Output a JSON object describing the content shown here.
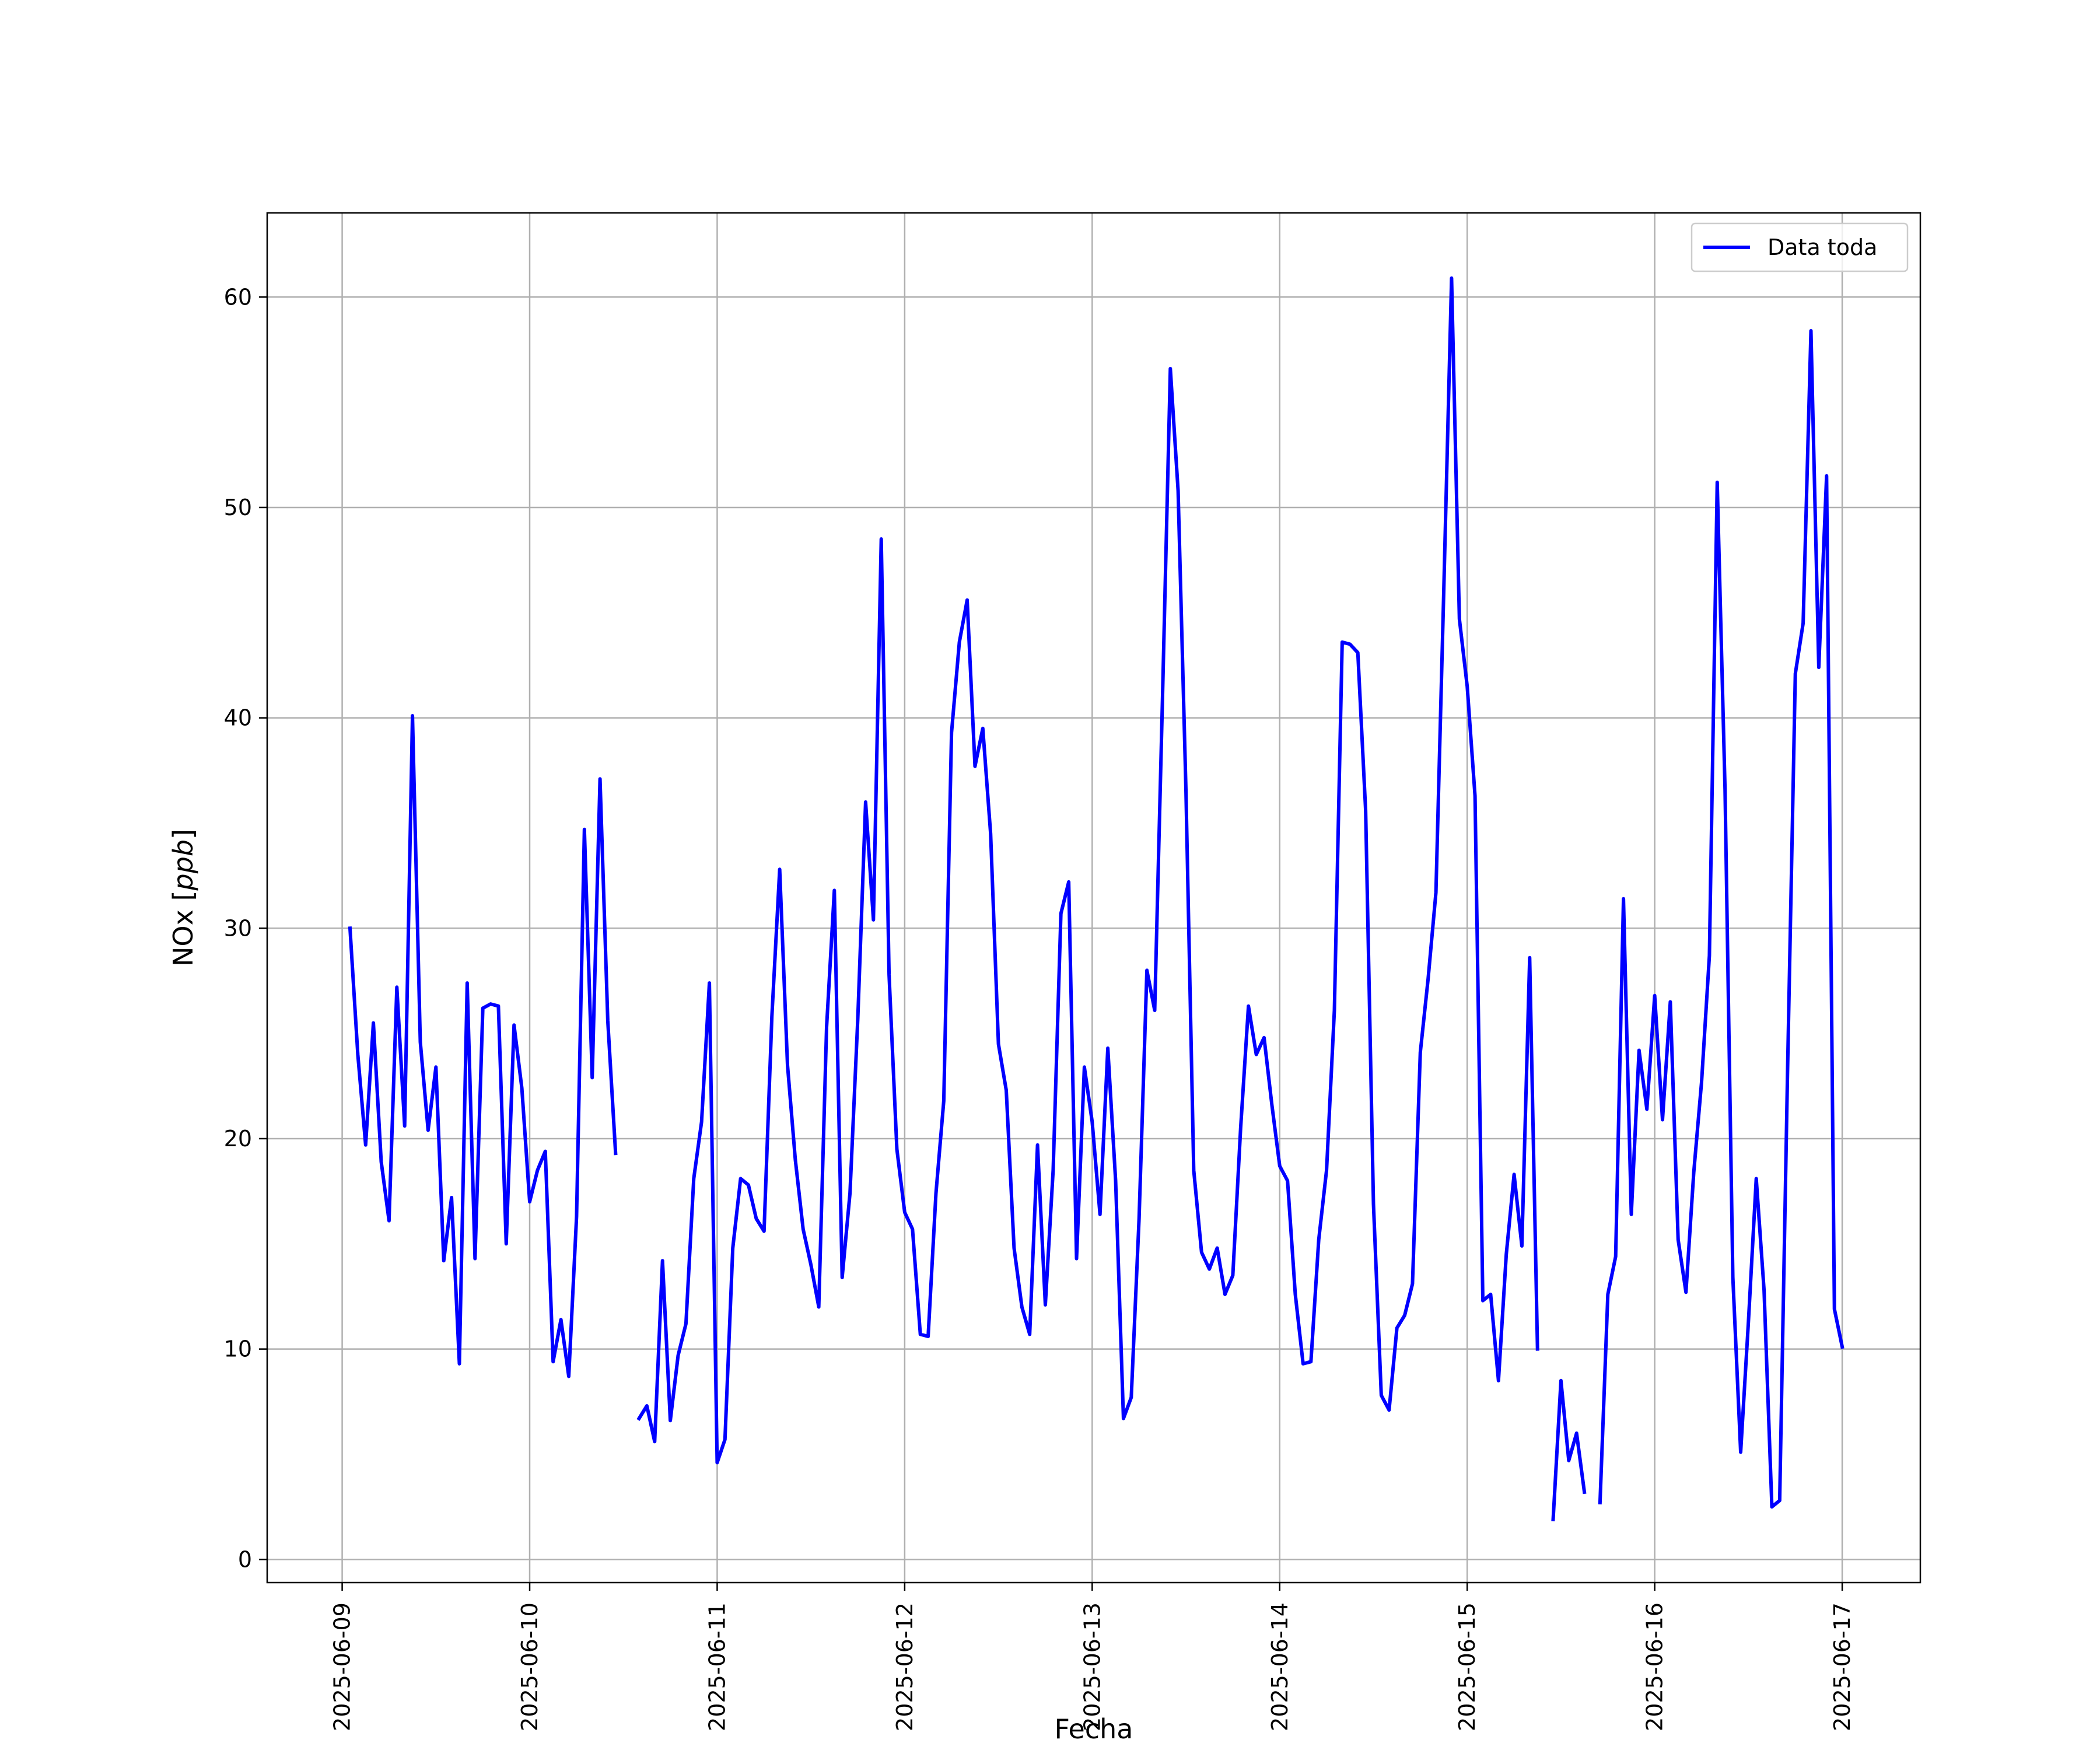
{
  "chart_data": {
    "type": "line",
    "xlabel": "Fecha",
    "ylabel": "NOx [ppb]",
    "ylabel_main": "NOx [",
    "ylabel_unit": "ppb",
    "ylabel_close": "]",
    "xlim": [
      "2025-06-08 14:24",
      "2025-06-17 10:00"
    ],
    "ylim": [
      -1.1,
      64
    ],
    "x_ticks": [
      "2025-06-09",
      "2025-06-10",
      "2025-06-11",
      "2025-06-12",
      "2025-06-13",
      "2025-06-14",
      "2025-06-15",
      "2025-06-16",
      "2025-06-17"
    ],
    "y_ticks": [
      0,
      10,
      20,
      30,
      40,
      50,
      60
    ],
    "grid": true,
    "legend_position": "top-right",
    "series": [
      {
        "name": "Data toda",
        "color": "#0000ff",
        "segments": [
          [
            [
              "2025-06-09 01:00",
              30.0
            ],
            [
              "2025-06-09 02:00",
              24.0
            ],
            [
              "2025-06-09 03:00",
              19.7
            ],
            [
              "2025-06-09 04:00",
              25.5
            ],
            [
              "2025-06-09 05:00",
              18.9
            ],
            [
              "2025-06-09 06:00",
              16.1
            ],
            [
              "2025-06-09 07:00",
              27.2
            ],
            [
              "2025-06-09 08:00",
              20.6
            ],
            [
              "2025-06-09 09:00",
              40.1
            ],
            [
              "2025-06-09 10:00",
              24.6
            ],
            [
              "2025-06-09 11:00",
              20.4
            ],
            [
              "2025-06-09 12:00",
              23.4
            ],
            [
              "2025-06-09 13:00",
              14.2
            ],
            [
              "2025-06-09 14:00",
              17.2
            ],
            [
              "2025-06-09 15:00",
              9.3
            ],
            [
              "2025-06-09 16:00",
              27.4
            ],
            [
              "2025-06-09 17:00",
              14.3
            ],
            [
              "2025-06-09 18:00",
              26.2
            ],
            [
              "2025-06-09 19:00",
              26.4
            ],
            [
              "2025-06-09 20:00",
              26.3
            ],
            [
              "2025-06-09 21:00",
              15.0
            ],
            [
              "2025-06-09 22:00",
              25.4
            ],
            [
              "2025-06-09 23:00",
              22.4
            ],
            [
              "2025-06-10 00:00",
              17.0
            ],
            [
              "2025-06-10 01:00",
              18.5
            ],
            [
              "2025-06-10 02:00",
              19.4
            ],
            [
              "2025-06-10 03:00",
              9.4
            ],
            [
              "2025-06-10 04:00",
              11.4
            ],
            [
              "2025-06-10 05:00",
              8.7
            ],
            [
              "2025-06-10 06:00",
              16.3
            ],
            [
              "2025-06-10 07:00",
              34.7
            ],
            [
              "2025-06-10 08:00",
              22.9
            ],
            [
              "2025-06-10 09:00",
              37.1
            ],
            [
              "2025-06-10 10:00",
              25.6
            ],
            [
              "2025-06-10 11:00",
              19.3
            ]
          ],
          [
            [
              "2025-06-10 14:00",
              6.7
            ],
            [
              "2025-06-10 15:00",
              7.3
            ],
            [
              "2025-06-10 16:00",
              5.6
            ],
            [
              "2025-06-10 17:00",
              14.2
            ],
            [
              "2025-06-10 18:00",
              6.6
            ],
            [
              "2025-06-10 19:00",
              9.7
            ],
            [
              "2025-06-10 20:00",
              11.2
            ],
            [
              "2025-06-10 21:00",
              18.1
            ],
            [
              "2025-06-10 22:00",
              20.8
            ],
            [
              "2025-06-10 23:00",
              27.4
            ],
            [
              "2025-06-11 00:00",
              4.6
            ],
            [
              "2025-06-11 01:00",
              5.7
            ],
            [
              "2025-06-11 02:00",
              14.8
            ],
            [
              "2025-06-11 03:00",
              18.1
            ],
            [
              "2025-06-11 04:00",
              17.8
            ],
            [
              "2025-06-11 05:00",
              16.2
            ],
            [
              "2025-06-11 06:00",
              15.6
            ],
            [
              "2025-06-11 07:00",
              25.8
            ],
            [
              "2025-06-11 08:00",
              32.8
            ],
            [
              "2025-06-11 09:00",
              23.5
            ],
            [
              "2025-06-11 10:00",
              19.0
            ],
            [
              "2025-06-11 11:00",
              15.7
            ],
            [
              "2025-06-11 12:00",
              14.0
            ],
            [
              "2025-06-11 13:00",
              12.0
            ],
            [
              "2025-06-11 14:00",
              25.3
            ],
            [
              "2025-06-11 15:00",
              31.8
            ],
            [
              "2025-06-11 16:00",
              13.4
            ],
            [
              "2025-06-11 17:00",
              17.4
            ],
            [
              "2025-06-11 18:00",
              25.7
            ],
            [
              "2025-06-11 19:00",
              36.0
            ],
            [
              "2025-06-11 20:00",
              30.4
            ],
            [
              "2025-06-11 21:00",
              48.5
            ],
            [
              "2025-06-11 22:00",
              27.8
            ],
            [
              "2025-06-11 23:00",
              19.5
            ],
            [
              "2025-06-12 00:00",
              16.5
            ],
            [
              "2025-06-12 01:00",
              15.7
            ],
            [
              "2025-06-12 02:00",
              10.7
            ],
            [
              "2025-06-12 03:00",
              10.6
            ],
            [
              "2025-06-12 04:00",
              17.4
            ],
            [
              "2025-06-12 05:00",
              21.8
            ],
            [
              "2025-06-12 06:00",
              39.3
            ],
            [
              "2025-06-12 07:00",
              43.6
            ],
            [
              "2025-06-12 08:00",
              45.6
            ],
            [
              "2025-06-12 09:00",
              37.7
            ],
            [
              "2025-06-12 10:00",
              39.5
            ],
            [
              "2025-06-12 11:00",
              34.5
            ],
            [
              "2025-06-12 12:00",
              24.5
            ],
            [
              "2025-06-12 13:00",
              22.3
            ],
            [
              "2025-06-12 14:00",
              14.8
            ],
            [
              "2025-06-12 15:00",
              12.0
            ],
            [
              "2025-06-12 16:00",
              10.7
            ],
            [
              "2025-06-12 17:00",
              19.7
            ],
            [
              "2025-06-12 18:00",
              12.1
            ],
            [
              "2025-06-12 19:00",
              18.5
            ],
            [
              "2025-06-12 20:00",
              30.7
            ],
            [
              "2025-06-12 21:00",
              32.2
            ],
            [
              "2025-06-12 22:00",
              14.3
            ],
            [
              "2025-06-12 23:00",
              23.4
            ],
            [
              "2025-06-13 00:00",
              20.8
            ],
            [
              "2025-06-13 01:00",
              16.4
            ],
            [
              "2025-06-13 02:00",
              24.3
            ],
            [
              "2025-06-13 03:00",
              18.0
            ],
            [
              "2025-06-13 04:00",
              6.7
            ],
            [
              "2025-06-13 05:00",
              7.7
            ],
            [
              "2025-06-13 06:00",
              16.2
            ],
            [
              "2025-06-13 07:00",
              28.0
            ],
            [
              "2025-06-13 08:00",
              26.1
            ],
            [
              "2025-06-13 09:00",
              41.0
            ],
            [
              "2025-06-13 10:00",
              56.6
            ],
            [
              "2025-06-13 11:00",
              50.8
            ],
            [
              "2025-06-13 12:00",
              36.6
            ],
            [
              "2025-06-13 13:00",
              18.5
            ],
            [
              "2025-06-13 14:00",
              14.6
            ],
            [
              "2025-06-13 15:00",
              13.8
            ],
            [
              "2025-06-13 16:00",
              14.8
            ],
            [
              "2025-06-13 17:00",
              12.6
            ],
            [
              "2025-06-13 18:00",
              13.5
            ],
            [
              "2025-06-13 19:00",
              20.5
            ],
            [
              "2025-06-13 20:00",
              26.3
            ],
            [
              "2025-06-13 21:00",
              24.0
            ],
            [
              "2025-06-13 22:00",
              24.8
            ],
            [
              "2025-06-13 23:00",
              21.6
            ],
            [
              "2025-06-14 00:00",
              18.7
            ],
            [
              "2025-06-14 01:00",
              18.0
            ],
            [
              "2025-06-14 02:00",
              12.6
            ],
            [
              "2025-06-14 03:00",
              9.3
            ],
            [
              "2025-06-14 04:00",
              9.4
            ],
            [
              "2025-06-14 05:00",
              15.2
            ],
            [
              "2025-06-14 06:00",
              18.5
            ],
            [
              "2025-06-14 07:00",
              26.1
            ],
            [
              "2025-06-14 08:00",
              43.6
            ],
            [
              "2025-06-14 09:00",
              43.5
            ],
            [
              "2025-06-14 10:00",
              43.1
            ],
            [
              "2025-06-14 11:00",
              35.6
            ],
            [
              "2025-06-14 12:00",
              16.9
            ],
            [
              "2025-06-14 13:00",
              7.8
            ],
            [
              "2025-06-14 14:00",
              7.1
            ],
            [
              "2025-06-14 15:00",
              11.0
            ],
            [
              "2025-06-14 16:00",
              11.6
            ],
            [
              "2025-06-14 17:00",
              13.1
            ],
            [
              "2025-06-14 18:00",
              24.1
            ],
            [
              "2025-06-14 19:00",
              27.6
            ],
            [
              "2025-06-14 20:00",
              31.7
            ],
            [
              "2025-06-14 21:00",
              46.0
            ],
            [
              "2025-06-14 22:00",
              60.9
            ],
            [
              "2025-06-14 23:00",
              44.7
            ],
            [
              "2025-06-15 00:00",
              41.5
            ],
            [
              "2025-06-15 01:00",
              36.3
            ],
            [
              "2025-06-15 02:00",
              12.3
            ],
            [
              "2025-06-15 03:00",
              12.6
            ],
            [
              "2025-06-15 04:00",
              8.5
            ],
            [
              "2025-06-15 05:00",
              14.5
            ],
            [
              "2025-06-15 06:00",
              18.3
            ],
            [
              "2025-06-15 07:00",
              14.9
            ],
            [
              "2025-06-15 08:00",
              28.6
            ],
            [
              "2025-06-15 09:00",
              10.0
            ]
          ],
          [
            [
              "2025-06-15 11:00",
              1.9
            ],
            [
              "2025-06-15 12:00",
              8.5
            ],
            [
              "2025-06-15 13:00",
              4.7
            ],
            [
              "2025-06-15 14:00",
              6.0
            ],
            [
              "2025-06-15 15:00",
              3.2
            ]
          ],
          [
            [
              "2025-06-15 17:00",
              2.7
            ],
            [
              "2025-06-15 18:00",
              12.6
            ],
            [
              "2025-06-15 19:00",
              14.4
            ],
            [
              "2025-06-15 20:00",
              31.4
            ],
            [
              "2025-06-15 21:00",
              16.4
            ],
            [
              "2025-06-15 22:00",
              24.2
            ],
            [
              "2025-06-15 23:00",
              21.4
            ],
            [
              "2025-06-16 00:00",
              26.8
            ],
            [
              "2025-06-16 01:00",
              20.9
            ],
            [
              "2025-06-16 02:00",
              26.5
            ],
            [
              "2025-06-16 03:00",
              15.2
            ],
            [
              "2025-06-16 04:00",
              12.7
            ],
            [
              "2025-06-16 05:00",
              18.4
            ],
            [
              "2025-06-16 06:00",
              22.7
            ],
            [
              "2025-06-16 07:00",
              28.7
            ],
            [
              "2025-06-16 08:00",
              51.2
            ],
            [
              "2025-06-16 09:00",
              36.6
            ],
            [
              "2025-06-16 10:00",
              13.4
            ],
            [
              "2025-06-16 11:00",
              5.1
            ],
            [
              "2025-06-16 12:00",
              11.3
            ],
            [
              "2025-06-16 13:00",
              18.1
            ],
            [
              "2025-06-16 14:00",
              12.8
            ],
            [
              "2025-06-16 15:00",
              2.5
            ],
            [
              "2025-06-16 16:00",
              2.8
            ],
            [
              "2025-06-16 17:00",
              23.1
            ],
            [
              "2025-06-16 18:00",
              42.1
            ],
            [
              "2025-06-16 19:00",
              44.5
            ],
            [
              "2025-06-16 20:00",
              58.4
            ],
            [
              "2025-06-16 21:00",
              42.4
            ],
            [
              "2025-06-16 22:00",
              51.5
            ],
            [
              "2025-06-16 23:00",
              11.9
            ],
            [
              "2025-06-17 00:00",
              10.1
            ]
          ]
        ]
      }
    ]
  }
}
